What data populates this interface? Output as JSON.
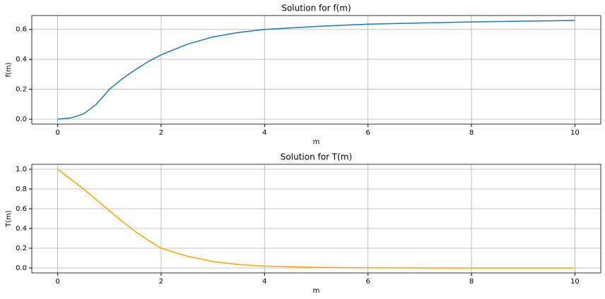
{
  "chart_data": [
    {
      "type": "line",
      "title": "Solution for f(m)",
      "x_label": "m",
      "y_label": "f(m)",
      "x": [
        0,
        0.25,
        0.5,
        0.75,
        1,
        1.25,
        1.5,
        1.75,
        2,
        2.5,
        3,
        3.5,
        4,
        5,
        6,
        7,
        8,
        9,
        10
      ],
      "series": [
        {
          "name": "f(m)",
          "color": "#1f77b4",
          "values": [
            0,
            0.008,
            0.035,
            0.1,
            0.2,
            0.27,
            0.33,
            0.385,
            0.43,
            0.5,
            0.55,
            0.58,
            0.6,
            0.62,
            0.635,
            0.643,
            0.65,
            0.655,
            0.66
          ]
        }
      ],
      "xlim": [
        -0.5,
        10.5
      ],
      "ylim": [
        -0.033,
        0.693
      ],
      "xticks": [
        0,
        2,
        4,
        6,
        8,
        10
      ],
      "yticks": [
        {
          "value": 0,
          "label": "0.0"
        },
        0.2,
        0.4,
        0.6
      ],
      "grid": true
    },
    {
      "type": "line",
      "title": "Solution for T(m)",
      "x_label": "m",
      "y_label": "T(m)",
      "x": [
        0,
        0.25,
        0.5,
        0.75,
        1,
        1.25,
        1.5,
        1.75,
        2,
        2.5,
        3,
        3.5,
        4,
        5,
        6,
        7,
        8,
        9,
        10
      ],
      "series": [
        {
          "name": "T(m)",
          "color": "#ffa500",
          "values": [
            1,
            0.9,
            0.8,
            0.69,
            0.58,
            0.47,
            0.37,
            0.28,
            0.2,
            0.12,
            0.065,
            0.035,
            0.02,
            0.006,
            0.002,
            0.001,
            0,
            0,
            0
          ]
        }
      ],
      "xlim": [
        -0.5,
        10.5
      ],
      "ylim": [
        -0.05,
        1.05
      ],
      "xticks": [
        0,
        2,
        4,
        6,
        8,
        10
      ],
      "yticks": [
        {
          "value": 0,
          "label": "0.0"
        },
        0.2,
        0.4,
        0.6,
        0.8,
        {
          "value": 1,
          "label": "1.0"
        }
      ],
      "grid": true
    }
  ]
}
